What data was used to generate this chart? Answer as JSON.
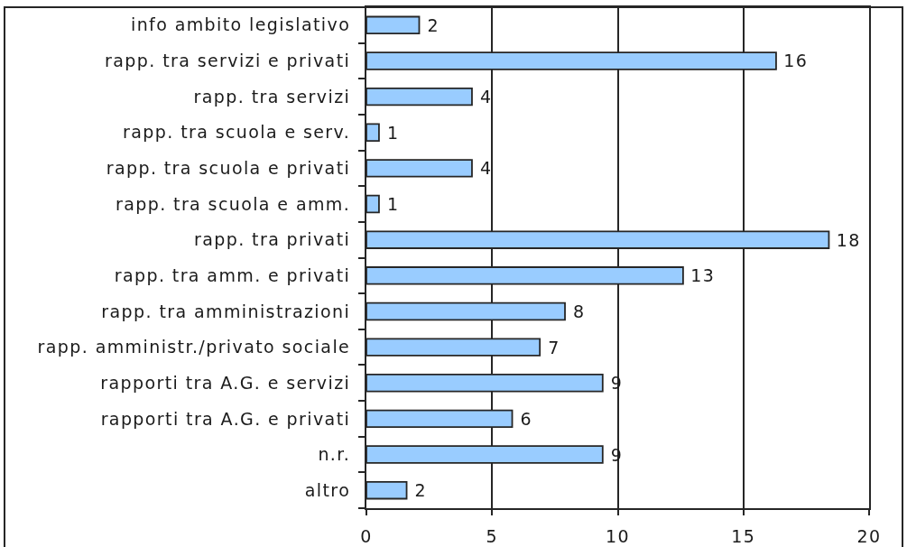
{
  "chart_data": {
    "type": "bar",
    "orientation": "horizontal",
    "categories": [
      "info ambito legislativo",
      "rapp. tra servizi e privati",
      "rapp. tra servizi",
      "rapp. tra scuola e serv.",
      "rapp. tra scuola e privati",
      "rapp. tra scuola e amm.",
      "rapp. tra privati",
      "rapp. tra amm. e privati",
      "rapp. tra amministrazioni",
      "rapp. amministr./privato sociale",
      "rapporti tra A.G. e servizi",
      "rapporti tra A.G. e privati",
      "n.r.",
      "altro"
    ],
    "values": [
      2.1,
      16.3,
      4.2,
      0.5,
      4.2,
      0.5,
      18.4,
      12.6,
      7.9,
      6.9,
      9.4,
      5.8,
      9.4,
      1.6
    ],
    "value_labels": [
      "2",
      "16",
      "4",
      "1",
      "4",
      "1",
      "18",
      "13",
      "8",
      "7",
      "9",
      "6",
      "9",
      "2"
    ],
    "color": "#99ccff",
    "xlim": [
      0,
      20
    ],
    "xticks": [
      0,
      5,
      10,
      15,
      20
    ],
    "grid": "x"
  }
}
